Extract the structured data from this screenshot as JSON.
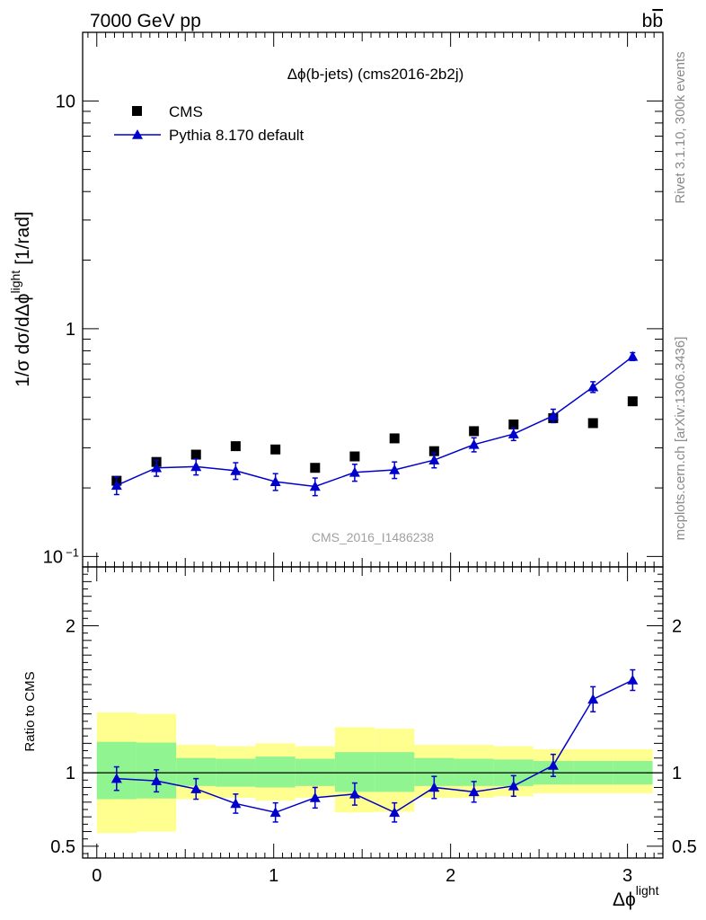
{
  "header": {
    "left": "7000 GeV pp",
    "right": "b",
    "right_bar": "b"
  },
  "side_labels": {
    "rivet": "Rivet 3.1.10,  300k events",
    "mcplots": "mcplots.cern.ch [arXiv:1306.3436]"
  },
  "watermark": "CMS_2016_I1486238",
  "chart_data": [
    {
      "type": "scatter",
      "panel": "main",
      "title": "Δϕ(b-jets) (cms2016-2b2j)",
      "ylabel": "1/σ dσ/dΔϕ^light [1/rad]",
      "ylabel_parts": {
        "main": "1/σ dσ/dΔϕ",
        "sup": "light",
        "unit": "[1/rad]"
      },
      "yscale": "log",
      "ylim": [
        0.09,
        20
      ],
      "xlim": [
        -0.08,
        3.2
      ],
      "yticks": [
        {
          "v": 10,
          "label": "10"
        },
        {
          "v": 1,
          "label": "1"
        },
        {
          "v": 0.1,
          "label": "10",
          "sup": "−1"
        }
      ],
      "legend_position": "top-left",
      "x": [
        0.112,
        0.337,
        0.561,
        0.785,
        1.01,
        1.234,
        1.458,
        1.683,
        1.907,
        2.132,
        2.356,
        2.58,
        2.805,
        3.029
      ],
      "series": [
        {
          "name": "CMS",
          "marker": "square",
          "color": "#000000",
          "values": [
            0.215,
            0.26,
            0.28,
            0.305,
            0.295,
            0.245,
            0.275,
            0.33,
            0.29,
            0.355,
            0.38,
            0.405,
            0.385,
            0.48
          ]
        },
        {
          "name": "Pythia 8.170 default",
          "marker": "triangle",
          "color": "#0000cc",
          "values": [
            0.205,
            0.245,
            0.248,
            0.238,
            0.213,
            0.203,
            0.234,
            0.24,
            0.265,
            0.31,
            0.345,
            0.415,
            0.555,
            0.755
          ],
          "err": [
            0.018,
            0.02,
            0.02,
            0.02,
            0.018,
            0.018,
            0.02,
            0.02,
            0.02,
            0.022,
            0.022,
            0.028,
            0.03,
            0.03
          ]
        }
      ]
    },
    {
      "type": "line",
      "panel": "ratio",
      "ylabel": "Ratio to CMS",
      "xlabel": "Δϕ^light",
      "xlabel_parts": {
        "main": "Δϕ",
        "sup": "light"
      },
      "ylim": [
        0.42,
        2.4
      ],
      "xlim": [
        -0.08,
        3.2
      ],
      "yticks": [
        2,
        1,
        0.5
      ],
      "xticks": [
        0,
        1,
        2,
        3
      ],
      "reference_line": 1,
      "bands": [
        {
          "x0": 0.0,
          "x1": 0.224,
          "inner": [
            0.82,
            1.21
          ],
          "outer": [
            0.59,
            1.41
          ]
        },
        {
          "x0": 0.224,
          "x1": 0.449,
          "inner": [
            0.825,
            1.205
          ],
          "outer": [
            0.6,
            1.4
          ]
        },
        {
          "x0": 0.449,
          "x1": 0.673,
          "inner": [
            0.91,
            1.1
          ],
          "outer": [
            0.82,
            1.19
          ]
        },
        {
          "x0": 0.673,
          "x1": 0.897,
          "inner": [
            0.905,
            1.095
          ],
          "outer": [
            0.83,
            1.18
          ]
        },
        {
          "x0": 0.897,
          "x1": 1.122,
          "inner": [
            0.9,
            1.11
          ],
          "outer": [
            0.81,
            1.2
          ]
        },
        {
          "x0": 1.122,
          "x1": 1.346,
          "inner": [
            0.91,
            1.095
          ],
          "outer": [
            0.83,
            1.18
          ]
        },
        {
          "x0": 1.346,
          "x1": 1.571,
          "inner": [
            0.87,
            1.14
          ],
          "outer": [
            0.73,
            1.31
          ]
        },
        {
          "x0": 1.571,
          "x1": 1.795,
          "inner": [
            0.87,
            1.14
          ],
          "outer": [
            0.735,
            1.3
          ]
        },
        {
          "x0": 1.795,
          "x1": 2.02,
          "inner": [
            0.91,
            1.1
          ],
          "outer": [
            0.83,
            1.19
          ]
        },
        {
          "x0": 2.02,
          "x1": 2.244,
          "inner": [
            0.91,
            1.095
          ],
          "outer": [
            0.83,
            1.19
          ]
        },
        {
          "x0": 2.244,
          "x1": 2.468,
          "inner": [
            0.91,
            1.09
          ],
          "outer": [
            0.84,
            1.18
          ]
        },
        {
          "x0": 2.468,
          "x1": 2.693,
          "inner": [
            0.92,
            1.08
          ],
          "outer": [
            0.86,
            1.16
          ]
        },
        {
          "x0": 2.693,
          "x1": 2.917,
          "inner": [
            0.92,
            1.08
          ],
          "outer": [
            0.86,
            1.16
          ]
        },
        {
          "x0": 2.917,
          "x1": 3.142,
          "inner": [
            0.92,
            1.08
          ],
          "outer": [
            0.86,
            1.16
          ]
        }
      ],
      "band_colors": {
        "inner": "#90f590",
        "outer": "#ffff90"
      },
      "x": [
        0.112,
        0.337,
        0.561,
        0.785,
        1.01,
        1.234,
        1.458,
        1.683,
        1.907,
        2.132,
        2.356,
        2.58,
        2.805,
        3.029
      ],
      "series": [
        {
          "name": "Pythia 8.170 default",
          "marker": "triangle",
          "color": "#0000cc",
          "values": [
            0.96,
            0.945,
            0.89,
            0.79,
            0.73,
            0.83,
            0.855,
            0.73,
            0.9,
            0.87,
            0.91,
            1.05,
            1.5,
            1.63
          ],
          "err": [
            0.08,
            0.075,
            0.07,
            0.065,
            0.065,
            0.07,
            0.075,
            0.065,
            0.075,
            0.07,
            0.07,
            0.075,
            0.085,
            0.07
          ]
        }
      ]
    }
  ]
}
